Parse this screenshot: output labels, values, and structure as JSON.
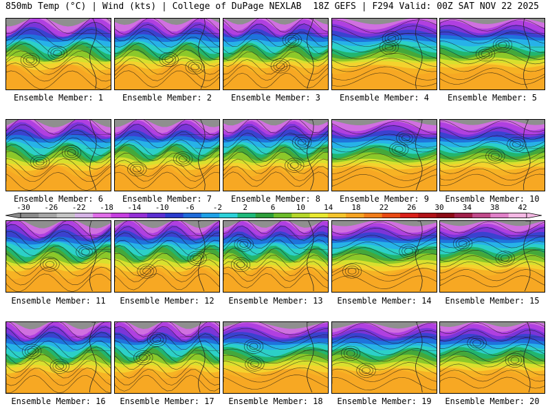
{
  "header": {
    "left": "850mb Temp (°C) | Wind (kts) | College of DuPage NEXLAB",
    "right": "18Z GEFS | F294 Valid: 00Z SAT NOV 22 2025"
  },
  "colorbar": {
    "ticks": [
      "-30",
      "-26",
      "-22",
      "-18",
      "-14",
      "-10",
      "-6",
      "-2",
      "2",
      "6",
      "10",
      "14",
      "18",
      "22",
      "26",
      "30",
      "34",
      "38",
      "42"
    ],
    "colors": [
      "#8a8a8a",
      "#a6a6a6",
      "#c4c4c4",
      "#d5b3e5",
      "#e06ee8",
      "#c63fe0",
      "#9430d6",
      "#5b2fd1",
      "#2a3ccc",
      "#1e6ad8",
      "#1ea0e6",
      "#2cd0d8",
      "#1eb87a",
      "#2e9e3a",
      "#6cbb2a",
      "#b5d62a",
      "#e8e830",
      "#f4c42c",
      "#f5a322",
      "#f07c1a",
      "#e84a14",
      "#d8201a",
      "#b01218",
      "#8c0c16",
      "#a0204a",
      "#c04a8a",
      "#e080c8",
      "#f4b8e4"
    ]
  },
  "panels": [
    {
      "label": "Ensemble Member: 1"
    },
    {
      "label": "Ensemble Member: 2"
    },
    {
      "label": "Ensemble Member: 3"
    },
    {
      "label": "Ensemble Member: 4"
    },
    {
      "label": "Ensemble Member: 5"
    },
    {
      "label": "Ensemble Member: 6"
    },
    {
      "label": "Ensemble Member: 7"
    },
    {
      "label": "Ensemble Member: 8"
    },
    {
      "label": "Ensemble Member: 9"
    },
    {
      "label": "Ensemble Member: 10"
    },
    {
      "label": "Ensemble Member: 11"
    },
    {
      "label": "Ensemble Member: 12"
    },
    {
      "label": "Ensemble Member: 13"
    },
    {
      "label": "Ensemble Member: 14"
    },
    {
      "label": "Ensemble Member: 15"
    },
    {
      "label": "Ensemble Member: 16"
    },
    {
      "label": "Ensemble Member: 17"
    },
    {
      "label": "Ensemble Member: 18"
    },
    {
      "label": "Ensemble Member: 19"
    },
    {
      "label": "Ensemble Member: 20"
    }
  ]
}
